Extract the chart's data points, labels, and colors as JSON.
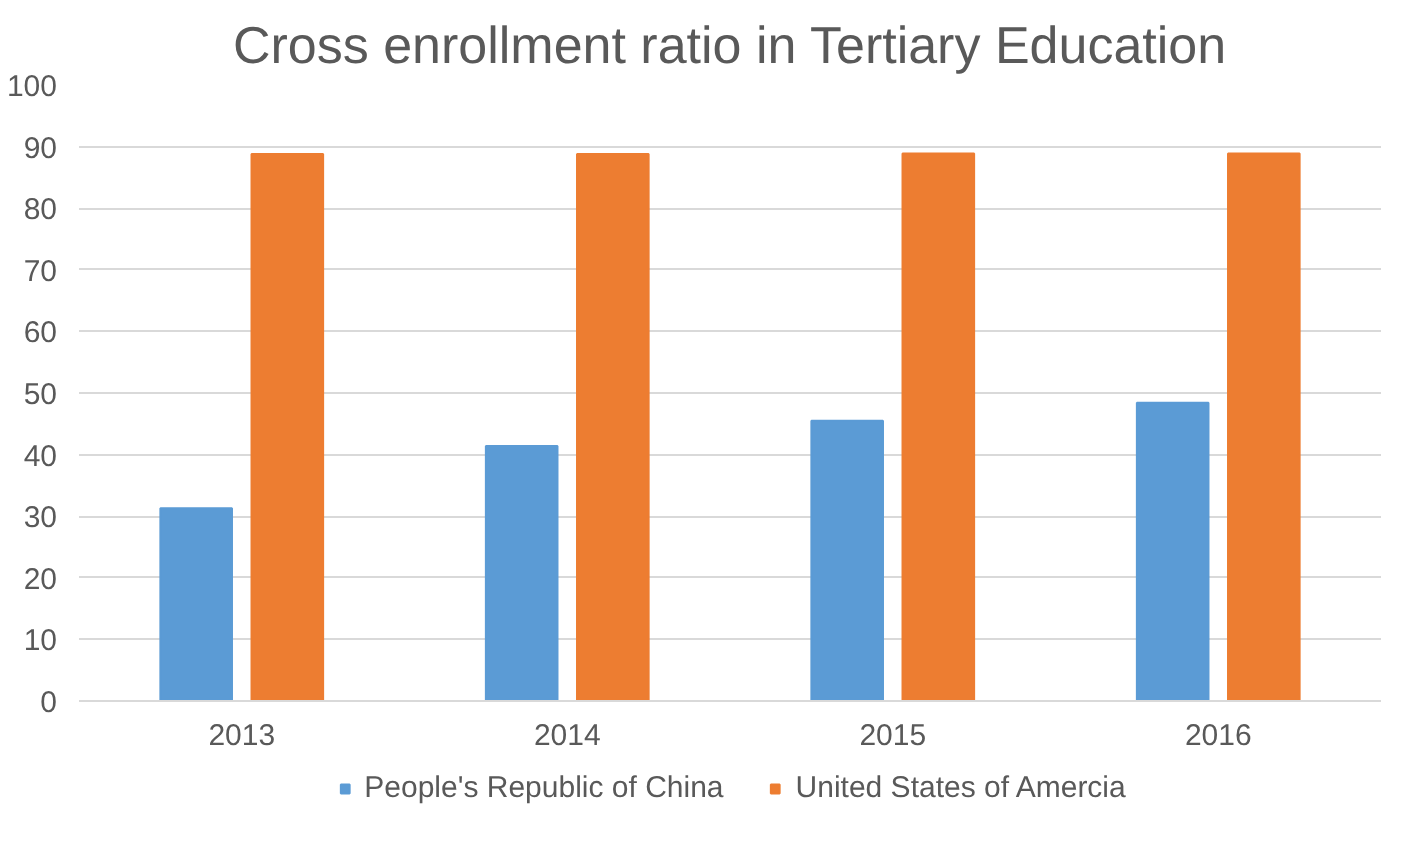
{
  "chart_data": {
    "type": "bar",
    "title": "Cross enrollment ratio in Tertiary Education",
    "categories": [
      "2013",
      "2014",
      "2015",
      "2016"
    ],
    "series": [
      {
        "name": "People's Republic of China",
        "color": "#5b9bd5",
        "values": [
          31.3,
          41.4,
          45.5,
          48.4
        ]
      },
      {
        "name": "United States of Amercia",
        "color": "#ed7d31",
        "values": [
          88.8,
          88.8,
          88.9,
          88.9
        ]
      }
    ],
    "ylim": [
      0,
      100
    ],
    "yticks": [
      0,
      10,
      20,
      30,
      40,
      50,
      60,
      70,
      80,
      90,
      100
    ],
    "grid": "y",
    "legend": "bottom"
  }
}
